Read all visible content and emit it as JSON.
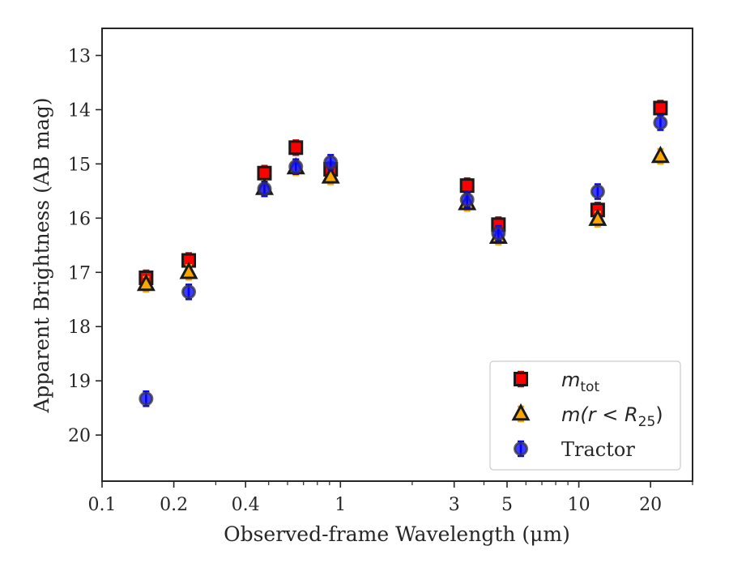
{
  "chart_data": {
    "type": "scatter",
    "xlabel": "Observed-frame Wavelength (μm)",
    "ylabel": "Apparent Brightness (AB mag)",
    "xscale": "log",
    "xlim": [
      0.1,
      30
    ],
    "ylim": [
      20.85,
      12.5
    ],
    "y_inverted": true,
    "x_ticks": [
      0.1,
      0.2,
      0.4,
      1,
      3,
      5,
      10,
      20
    ],
    "x_tick_labels": [
      "0.1",
      "0.2",
      "0.4",
      "1",
      "3",
      "5",
      "10",
      "20"
    ],
    "y_ticks": [
      13,
      14,
      15,
      16,
      17,
      18,
      19,
      20
    ],
    "y_tick_labels": [
      "13",
      "14",
      "15",
      "16",
      "17",
      "18",
      "19",
      "20"
    ],
    "grid": false,
    "legend_position": "lower-right",
    "series": [
      {
        "name": "m_tot",
        "marker": "square",
        "color": "#ff0000",
        "error_color": "#cc0000",
        "points": [
          {
            "x": 0.153,
            "y": 17.1
          },
          {
            "x": 0.231,
            "y": 16.78
          },
          {
            "x": 0.48,
            "y": 15.17
          },
          {
            "x": 0.65,
            "y": 14.7
          },
          {
            "x": 0.91,
            "y": 15.1
          },
          {
            "x": 3.4,
            "y": 15.4
          },
          {
            "x": 4.6,
            "y": 16.12
          },
          {
            "x": 12.0,
            "y": 15.85
          },
          {
            "x": 22.0,
            "y": 13.97
          }
        ]
      },
      {
        "name": "m(r<R25)",
        "marker": "triangle",
        "color": "#ffa500",
        "error_color": "#ffa500",
        "points": [
          {
            "x": 0.153,
            "y": 17.22
          },
          {
            "x": 0.231,
            "y": 17.0
          },
          {
            "x": 0.48,
            "y": 15.45
          },
          {
            "x": 0.65,
            "y": 15.07
          },
          {
            "x": 0.91,
            "y": 15.24
          },
          {
            "x": 3.4,
            "y": 15.73
          },
          {
            "x": 4.6,
            "y": 16.35
          },
          {
            "x": 12.0,
            "y": 16.02
          },
          {
            "x": 22.0,
            "y": 14.86
          }
        ]
      },
      {
        "name": "Tractor",
        "marker": "circle",
        "color": "#1a1aff",
        "error_color": "#0000ff",
        "points": [
          {
            "x": 0.153,
            "y": 19.33
          },
          {
            "x": 0.231,
            "y": 17.36
          },
          {
            "x": 0.48,
            "y": 15.46
          },
          {
            "x": 0.65,
            "y": 15.05
          },
          {
            "x": 0.91,
            "y": 14.97
          },
          {
            "x": 3.4,
            "y": 15.66
          },
          {
            "x": 4.6,
            "y": 16.28
          },
          {
            "x": 12.0,
            "y": 15.51
          },
          {
            "x": 22.0,
            "y": 14.24
          }
        ]
      }
    ]
  },
  "legend": {
    "m_tot_main": "m",
    "m_tot_sub": "tot",
    "m_r_main": "m(r < R",
    "m_r_sub": "25",
    "m_r_close": ")",
    "tractor": "Tractor"
  }
}
